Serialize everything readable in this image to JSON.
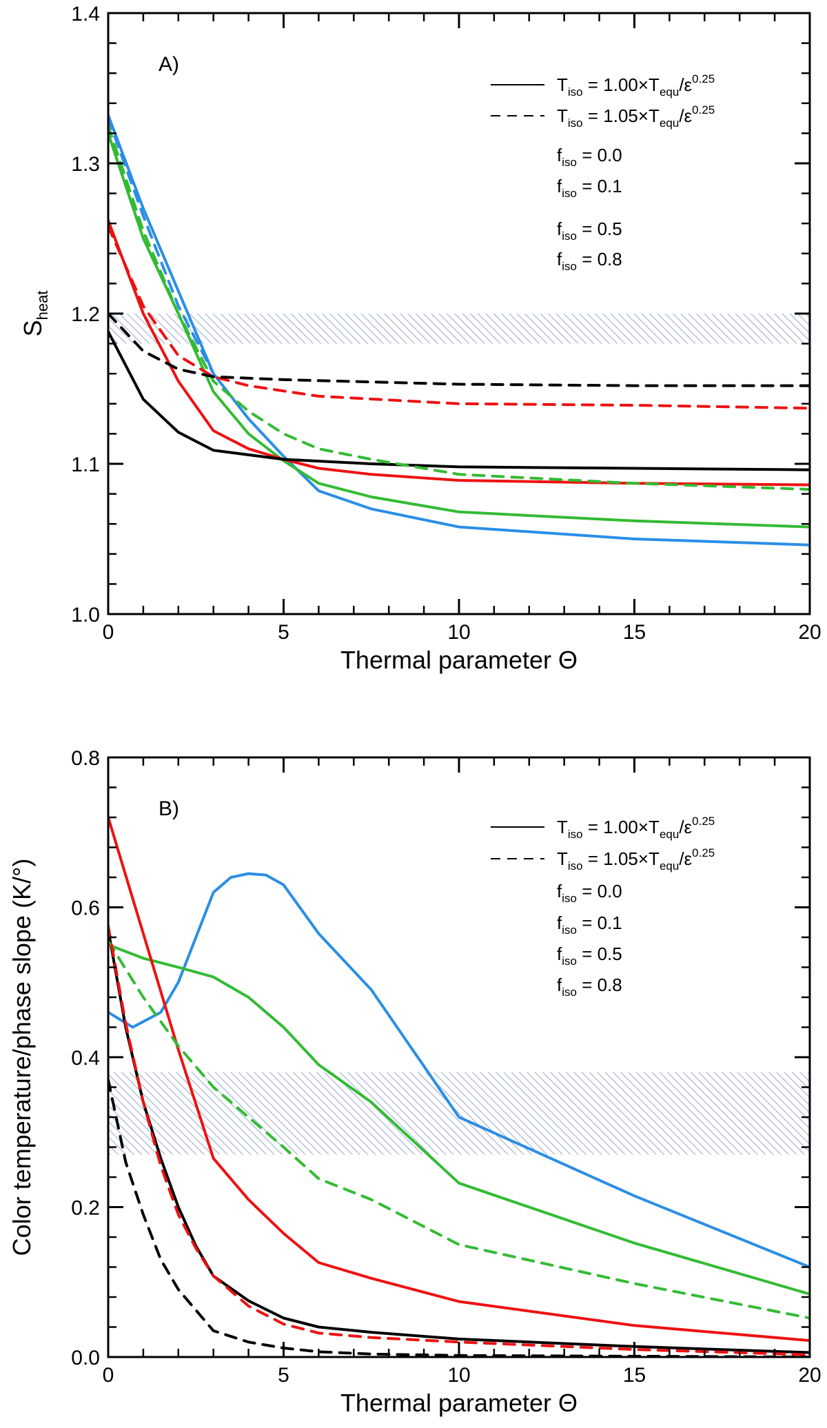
{
  "colors": {
    "blue": "#2a8ee6",
    "green": "#33bb33",
    "red": "#ee1111",
    "black": "#000000",
    "band": "#b4c2d8"
  },
  "chart_data": [
    {
      "type": "line",
      "panel_label": "A)",
      "xlabel": "Thermal parameter Θ",
      "ylabel_main": "S",
      "ylabel_sub": "heat",
      "xlim": [
        0,
        20
      ],
      "ylim": [
        1.0,
        1.4
      ],
      "xticks": [
        "0",
        "5",
        "10",
        "15",
        "20"
      ],
      "yticks": [
        "1.0",
        "1.1",
        "1.2",
        "1.3",
        "1.4"
      ],
      "xtick_values": [
        0,
        5,
        10,
        15,
        20
      ],
      "ytick_values": [
        1.0,
        1.1,
        1.2,
        1.3,
        1.4
      ],
      "band": [
        1.18,
        1.2
      ],
      "legend": {
        "solid": {
          "name": "T",
          "sub": "iso",
          "mid": " = 1.00×T",
          "sub2": "equ",
          "tail": "/ε",
          "sup": "0.25"
        },
        "dashed": {
          "name": "T",
          "sub": "iso",
          "mid": " = 1.05×T",
          "sub2": "equ",
          "tail": "/ε",
          "sup": "0.25"
        },
        "f_entries": [
          {
            "name": "f",
            "sub": "iso",
            "value": " = 0.0",
            "color": "blue"
          },
          {
            "name": "f",
            "sub": "iso",
            "value": " = 0.1",
            "color": "green"
          },
          {
            "name": "f",
            "sub": "iso",
            "value": " = 0.5",
            "color": "red"
          },
          {
            "name": "f",
            "sub": "iso",
            "value": " = 0.8",
            "color": "black"
          }
        ]
      },
      "series": [
        {
          "name": "f_iso=0.0 solid",
          "color": "blue",
          "dash": false,
          "x": [
            0,
            1,
            2,
            3,
            4,
            5,
            6,
            7.5,
            10,
            15,
            20
          ],
          "y": [
            1.332,
            1.27,
            1.215,
            1.16,
            1.13,
            1.105,
            1.082,
            1.07,
            1.058,
            1.05,
            1.046
          ]
        },
        {
          "name": "f_iso=0.1 solid",
          "color": "green",
          "dash": false,
          "x": [
            0,
            1,
            2,
            3,
            4,
            5,
            6,
            7.5,
            10,
            15,
            20
          ],
          "y": [
            1.32,
            1.25,
            1.2,
            1.148,
            1.12,
            1.102,
            1.087,
            1.078,
            1.068,
            1.062,
            1.058
          ]
        },
        {
          "name": "f_iso=0.5 solid",
          "color": "red",
          "dash": false,
          "x": [
            0,
            1,
            2,
            3,
            4,
            5,
            6,
            7.5,
            10,
            15,
            20
          ],
          "y": [
            1.262,
            1.2,
            1.155,
            1.122,
            1.11,
            1.103,
            1.097,
            1.093,
            1.089,
            1.087,
            1.086
          ]
        },
        {
          "name": "f_iso=0.8 solid",
          "color": "black",
          "dash": false,
          "x": [
            0,
            1,
            2,
            3,
            5,
            7.5,
            10,
            15,
            20
          ],
          "y": [
            1.188,
            1.143,
            1.121,
            1.109,
            1.103,
            1.1,
            1.098,
            1.097,
            1.096
          ]
        },
        {
          "name": "f_iso=0.0 dashed",
          "color": "blue",
          "dash": true,
          "x": [
            0,
            1,
            2,
            3
          ],
          "y": [
            1.33,
            1.265,
            1.205,
            1.16
          ]
        },
        {
          "name": "f_iso=0.1 dashed",
          "color": "green",
          "dash": true,
          "x": [
            0,
            1,
            2,
            3,
            4,
            5,
            6,
            7.5,
            10,
            15,
            20
          ],
          "y": [
            1.325,
            1.255,
            1.2,
            1.155,
            1.135,
            1.12,
            1.11,
            1.103,
            1.093,
            1.087,
            1.083
          ]
        },
        {
          "name": "f_iso=0.5 dashed",
          "color": "red",
          "dash": true,
          "x": [
            0,
            1,
            2,
            3,
            4,
            6,
            10,
            15,
            20
          ],
          "y": [
            1.258,
            1.205,
            1.172,
            1.158,
            1.152,
            1.145,
            1.14,
            1.139,
            1.137
          ]
        },
        {
          "name": "f_iso=0.8 dashed",
          "color": "black",
          "dash": true,
          "x": [
            0,
            1,
            2,
            3,
            5,
            10,
            15,
            20
          ],
          "y": [
            1.2,
            1.175,
            1.163,
            1.158,
            1.156,
            1.153,
            1.152,
            1.152
          ]
        }
      ]
    },
    {
      "type": "line",
      "panel_label": "B)",
      "xlabel": "Thermal parameter Θ",
      "ylabel": "Color temperature/phase slope (K/°)",
      "xlim": [
        0,
        20
      ],
      "ylim": [
        0.0,
        0.8
      ],
      "xticks": [
        "0",
        "5",
        "10",
        "15",
        "20"
      ],
      "yticks": [
        "0.0",
        "0.2",
        "0.4",
        "0.6",
        "0.8"
      ],
      "xtick_values": [
        0,
        5,
        10,
        15,
        20
      ],
      "ytick_values": [
        0.0,
        0.2,
        0.4,
        0.6,
        0.8
      ],
      "band": [
        0.27,
        0.38
      ],
      "legend": {
        "solid": {
          "name": "T",
          "sub": "iso",
          "mid": " = 1.00×T",
          "sub2": "equ",
          "tail": "/ε",
          "sup": "0.25"
        },
        "dashed": {
          "name": "T",
          "sub": "iso",
          "mid": " = 1.05×T",
          "sub2": "equ",
          "tail": "/ε",
          "sup": "0.25"
        },
        "f_entries": [
          {
            "name": "f",
            "sub": "iso",
            "value": " = 0.0",
            "color": "blue"
          },
          {
            "name": "f",
            "sub": "iso",
            "value": " = 0.1",
            "color": "green"
          },
          {
            "name": "f",
            "sub": "iso",
            "value": " = 0.5",
            "color": "red"
          },
          {
            "name": "f",
            "sub": "iso",
            "value": " = 0.8",
            "color": "black"
          }
        ]
      },
      "series": [
        {
          "name": "f_iso=0.0 solid",
          "color": "blue",
          "dash": false,
          "x": [
            0,
            0.7,
            1.5,
            2,
            2.5,
            3,
            3.5,
            4,
            4.5,
            5,
            6,
            7.5,
            10,
            15,
            20
          ],
          "y": [
            0.46,
            0.44,
            0.46,
            0.5,
            0.56,
            0.62,
            0.64,
            0.645,
            0.643,
            0.63,
            0.565,
            0.49,
            0.32,
            0.215,
            0.12
          ]
        },
        {
          "name": "f_iso=0.1 solid",
          "color": "green",
          "dash": false,
          "x": [
            0,
            1,
            2,
            3,
            4,
            5,
            6,
            7.5,
            10,
            15,
            20
          ],
          "y": [
            0.55,
            0.532,
            0.52,
            0.507,
            0.48,
            0.44,
            0.39,
            0.34,
            0.232,
            0.152,
            0.084
          ]
        },
        {
          "name": "f_iso=0.5 solid",
          "color": "red",
          "dash": false,
          "x": [
            0,
            1,
            2,
            3,
            4,
            5,
            6,
            7.5,
            10,
            15,
            20
          ],
          "y": [
            0.72,
            0.565,
            0.41,
            0.265,
            0.21,
            0.165,
            0.126,
            0.105,
            0.074,
            0.042,
            0.022
          ]
        },
        {
          "name": "f_iso=0.8 solid",
          "color": "black",
          "dash": false,
          "x": [
            0,
            0.5,
            1,
            1.5,
            2,
            2.5,
            3,
            4,
            5,
            6,
            7.5,
            10,
            15,
            20
          ],
          "y": [
            0.57,
            0.44,
            0.34,
            0.265,
            0.2,
            0.148,
            0.108,
            0.075,
            0.052,
            0.04,
            0.033,
            0.024,
            0.014,
            0.006
          ]
        },
        {
          "name": "f_iso=0.1 dashed",
          "color": "green",
          "dash": true,
          "x": [
            0,
            1,
            2,
            3,
            4,
            5,
            6,
            7.5,
            10,
            15,
            20
          ],
          "y": [
            0.555,
            0.48,
            0.415,
            0.36,
            0.32,
            0.28,
            0.238,
            0.21,
            0.15,
            0.098,
            0.052
          ]
        },
        {
          "name": "f_iso=0.5 dashed",
          "color": "red",
          "dash": true,
          "x": [
            0,
            0.5,
            1,
            1.5,
            2,
            2.5,
            3,
            4,
            5,
            6,
            7.5,
            10,
            15,
            20
          ],
          "y": [
            0.575,
            0.445,
            0.34,
            0.255,
            0.19,
            0.145,
            0.108,
            0.068,
            0.044,
            0.032,
            0.026,
            0.02,
            0.01,
            0.003
          ]
        },
        {
          "name": "f_iso=0.8 dashed",
          "color": "black",
          "dash": true,
          "x": [
            0,
            0.5,
            1,
            1.5,
            2,
            3,
            4,
            5,
            6,
            7.5,
            10,
            15,
            20
          ],
          "y": [
            0.37,
            0.26,
            0.19,
            0.13,
            0.09,
            0.035,
            0.02,
            0.012,
            0.007,
            0.004,
            0.002,
            0.001,
            0.0
          ]
        }
      ]
    }
  ]
}
